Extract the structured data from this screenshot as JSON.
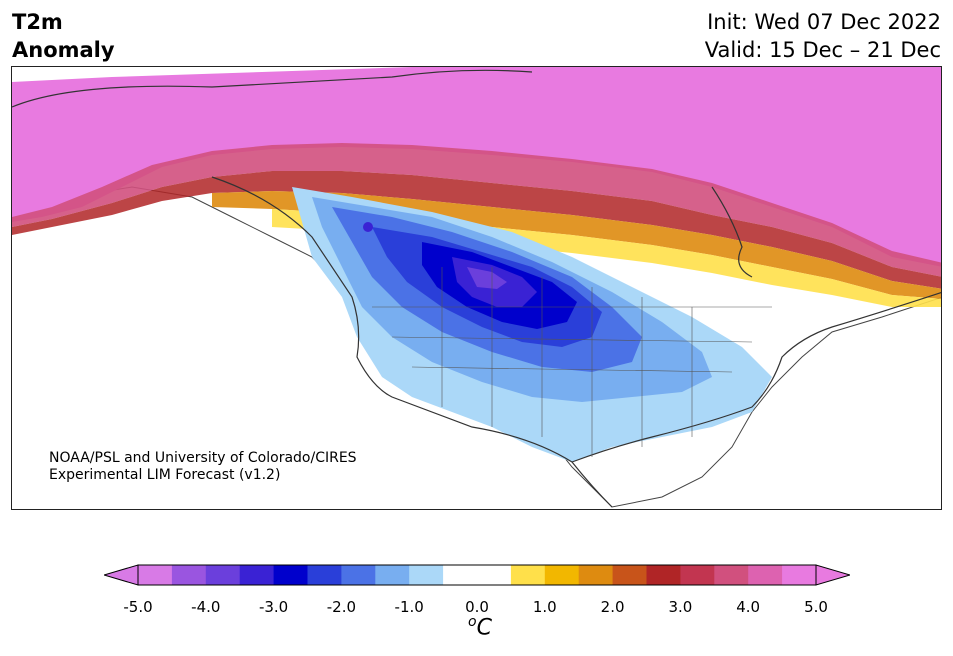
{
  "header": {
    "title_line1": "T2m",
    "title_line2": "Anomaly",
    "init": "Init: Wed 07 Dec 2022",
    "valid": "Valid: 15 Dec – 21 Dec"
  },
  "credit": {
    "line1": "NOAA/PSL and University of Colorado/CIRES",
    "line2": "Experimental LIM Forecast (v1.2)"
  },
  "colorbar": {
    "ticks": [
      "-5.0",
      "-4.0",
      "-3.0",
      "-2.0",
      "-1.0",
      "0.0",
      "1.0",
      "2.0",
      "3.0",
      "4.0",
      "5.0"
    ],
    "unit_base": "C",
    "unit_sup": "o",
    "min_extend_color": "#d87ae6",
    "max_extend_color": "#e87ae0",
    "colors": [
      "#d87ae6",
      "#9a55e0",
      "#6b3fdc",
      "#3a22d4",
      "#0000cc",
      "#2a3fd9",
      "#4b72e6",
      "#78aef0",
      "#abd8f8",
      "#ffffff",
      "#ffffff",
      "#ffe04a",
      "#f2b700",
      "#de8b10",
      "#c8541a",
      "#b02526",
      "#c23550",
      "#d1507e",
      "#dd62b0",
      "#e87ae0"
    ]
  }
}
